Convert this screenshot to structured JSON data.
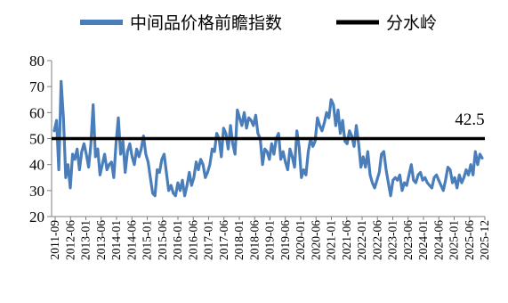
{
  "chart_data": {
    "type": "line",
    "title": "",
    "xlabel": "",
    "ylabel": "",
    "ylim": [
      20,
      80
    ],
    "yticks": [
      20,
      30,
      40,
      50,
      60,
      70,
      80
    ],
    "grid": false,
    "legend": {
      "placement": "top"
    },
    "x_start": "2011-09",
    "x_end": "2025-12",
    "x_tick_labels": [
      "2011-09",
      "2012-06",
      "2013-01",
      "2013-06",
      "2014-01",
      "2014-06",
      "2015-01",
      "2015-06",
      "2016-01",
      "2016-06",
      "2017-01",
      "2017-06",
      "2018-01",
      "2018-06",
      "2019-01",
      "2019-06",
      "2020-01",
      "2020-06",
      "2021-01",
      "2021-06",
      "2022-01",
      "2022-06",
      "2023-01",
      "2023-06",
      "2024-01",
      "2024-06",
      "2025-01",
      "2025-06",
      "2025-12"
    ],
    "series": [
      {
        "name": "中间品价格前瞻指数",
        "color": "#4a7ebb",
        "values": [
          53,
          57,
          38,
          72,
          58,
          35,
          40,
          31,
          44,
          42,
          46,
          38,
          45,
          48,
          44,
          39,
          48,
          63,
          43,
          46,
          36,
          40,
          44,
          38,
          40,
          41,
          35,
          48,
          58,
          44,
          49,
          37,
          45,
          48,
          43,
          40,
          46,
          43,
          46,
          51,
          44,
          41,
          35,
          29,
          28,
          38,
          37,
          42,
          44,
          37,
          30,
          32,
          29,
          28,
          33,
          30,
          34,
          28,
          32,
          37,
          32,
          35,
          41,
          38,
          42,
          40,
          35,
          37,
          40,
          46,
          45,
          52,
          50,
          43,
          54,
          52,
          46,
          55,
          48,
          44,
          61,
          58,
          55,
          60,
          54,
          58,
          57,
          55,
          59,
          52,
          50,
          40,
          46,
          45,
          42,
          48,
          44,
          50,
          52,
          42,
          45,
          41,
          38,
          46,
          43,
          39,
          53,
          47,
          35,
          38,
          36,
          45,
          50,
          47,
          49,
          58,
          55,
          53,
          56,
          60,
          58,
          65,
          63,
          55,
          61,
          52,
          57,
          49,
          48,
          53,
          51,
          47,
          55,
          48,
          39,
          43,
          39,
          45,
          36,
          33,
          31,
          34,
          37,
          44,
          45,
          38,
          33,
          28,
          34,
          35,
          34,
          36,
          30,
          33,
          32,
          36,
          40,
          34,
          33,
          36,
          37,
          34,
          35,
          33,
          32,
          31,
          35,
          36,
          34,
          32,
          30,
          34,
          39,
          38,
          33,
          35,
          31,
          36,
          33,
          35,
          38,
          36,
          40,
          36,
          45,
          40,
          44,
          42.5
        ]
      },
      {
        "name": "分水岭",
        "color": "#000000",
        "values": [
          50,
          50
        ]
      }
    ],
    "annotations": [
      {
        "text": "42.5",
        "value": 42.5
      }
    ]
  }
}
